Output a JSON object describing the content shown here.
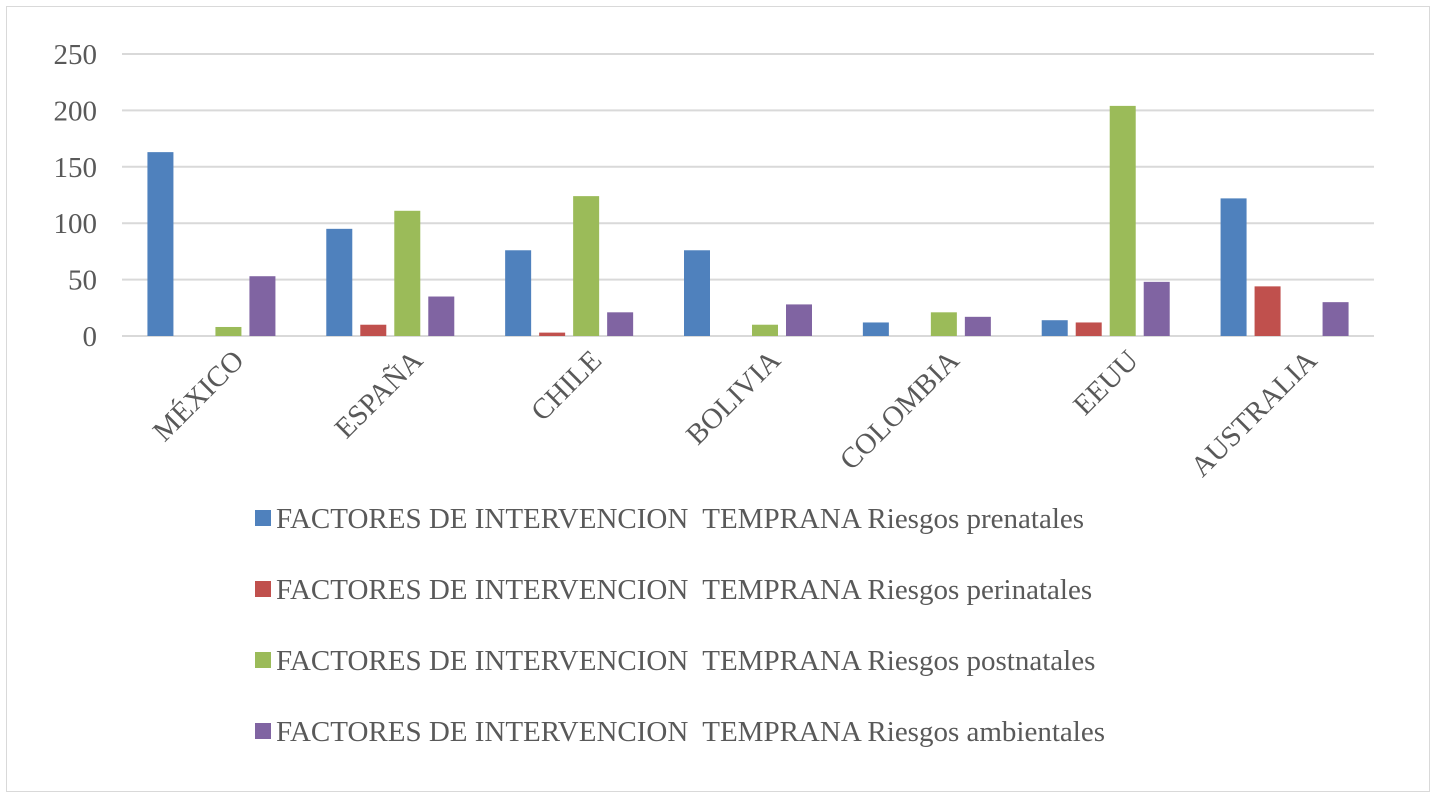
{
  "chart_data": {
    "type": "bar",
    "title": "",
    "xlabel": "",
    "ylabel": "",
    "categories": [
      "MÉXICO",
      "ESPAÑA",
      "CHILE",
      "BOLIVIA",
      "COLOMBIA",
      "EEUU",
      "AUSTRALIA"
    ],
    "ylim": [
      0,
      250
    ],
    "yticks": [
      0,
      50,
      100,
      150,
      200,
      250
    ],
    "grid": true,
    "legend_position": "bottom",
    "series": [
      {
        "name": "FACTORES DE INTERVENCION  TEMPRANA Riesgos prenatales",
        "color": "#4f81bd",
        "values": [
          163,
          95,
          76,
          76,
          12,
          14,
          122
        ]
      },
      {
        "name": "FACTORES DE INTERVENCION  TEMPRANA Riesgos perinatales",
        "color": "#c0504d",
        "values": [
          0,
          10,
          3,
          0,
          0,
          12,
          44
        ]
      },
      {
        "name": "FACTORES DE INTERVENCION  TEMPRANA Riesgos postnatales",
        "color": "#9bbb59",
        "values": [
          8,
          111,
          124,
          10,
          21,
          204,
          0
        ]
      },
      {
        "name": "FACTORES DE INTERVENCION  TEMPRANA Riesgos ambientales",
        "color": "#8064a2",
        "values": [
          53,
          35,
          21,
          28,
          17,
          48,
          30
        ]
      }
    ]
  }
}
